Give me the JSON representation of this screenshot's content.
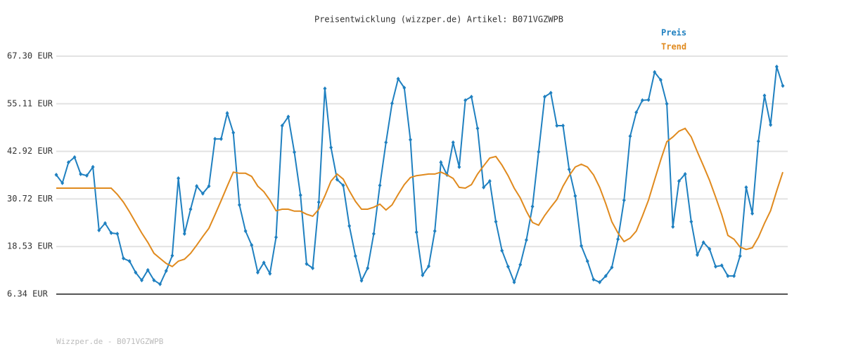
{
  "chart_data": {
    "type": "line",
    "title": "Preisentwicklung (wizzper.de) Artikel: B071VGZWPB",
    "footer": "Wizzper.de - B071VGZWPB",
    "ylim": [
      6.34,
      67.3
    ],
    "yticks": [
      {
        "value": 6.34,
        "label": "6.34 EUR"
      },
      {
        "value": 18.53,
        "label": "18.53 EUR"
      },
      {
        "value": 30.72,
        "label": "30.72 EUR"
      },
      {
        "value": 42.92,
        "label": "42.92 EUR"
      },
      {
        "value": 55.11,
        "label": "55.11 EUR"
      },
      {
        "value": 67.3,
        "label": "67.30 EUR"
      }
    ],
    "grid": true,
    "legend": "top-right",
    "series": [
      {
        "name": "Preis",
        "color": "#1f80c0",
        "markers": true,
        "values": [
          36.9,
          34.8,
          40.1,
          41.4,
          37.1,
          36.7,
          38.9,
          22.7,
          24.5,
          22.0,
          21.8,
          15.5,
          14.8,
          11.9,
          9.9,
          12.5,
          9.9,
          8.9,
          12.3,
          16.2,
          36.0,
          21.8,
          28.1,
          34.0,
          32.1,
          34.0,
          46.1,
          46.1,
          52.7,
          47.7,
          29.2,
          22.5,
          18.9,
          11.9,
          14.4,
          11.6,
          20.9,
          49.5,
          51.8,
          42.7,
          31.7,
          14.1,
          13.0,
          29.9,
          59.0,
          43.9,
          35.7,
          34.2,
          23.8,
          16.1,
          9.8,
          13.0,
          21.8,
          34.2,
          45.2,
          55.2,
          61.5,
          59.2,
          45.9,
          22.2,
          11.2,
          13.5,
          22.5,
          40.1,
          36.9,
          45.2,
          38.9,
          56.0,
          56.9,
          48.8,
          33.7,
          35.3,
          24.9,
          17.5,
          13.4,
          9.4,
          13.9,
          20.2,
          28.8,
          42.8,
          56.9,
          57.9,
          49.5,
          49.5,
          38.3,
          31.5,
          18.7,
          14.8,
          10.1,
          9.4,
          11.0,
          13.2,
          20.4,
          30.4,
          46.8,
          52.9,
          56.0,
          56.1,
          63.2,
          61.2,
          55.1,
          23.6,
          35.3,
          37.1,
          24.9,
          16.4,
          19.6,
          17.9,
          13.4,
          13.7,
          11.0,
          11.0,
          16.1,
          33.7,
          27.0,
          45.5,
          57.2,
          49.7,
          64.6,
          59.7
        ]
      },
      {
        "name": "Trend",
        "color": "#e08a1e",
        "markers": false,
        "values": [
          33.5,
          33.5,
          33.5,
          33.5,
          33.5,
          33.5,
          33.5,
          33.5,
          33.5,
          33.5,
          31.9,
          29.9,
          27.4,
          24.7,
          22.0,
          19.6,
          16.8,
          15.5,
          14.2,
          13.4,
          14.8,
          15.3,
          16.8,
          18.9,
          21.1,
          23.2,
          26.7,
          30.3,
          34.0,
          37.6,
          37.3,
          37.3,
          36.5,
          34.0,
          32.6,
          30.4,
          27.7,
          28.1,
          28.1,
          27.6,
          27.6,
          26.8,
          26.3,
          28.1,
          31.5,
          35.3,
          37.1,
          35.8,
          32.8,
          30.1,
          28.1,
          28.1,
          28.6,
          29.4,
          27.9,
          29.2,
          31.9,
          34.4,
          36.2,
          36.7,
          36.9,
          37.1,
          37.1,
          37.6,
          36.9,
          36.0,
          33.7,
          33.5,
          34.4,
          37.1,
          39.2,
          41.2,
          41.6,
          39.4,
          36.7,
          33.5,
          31.0,
          27.6,
          24.7,
          24.0,
          26.5,
          28.6,
          30.6,
          34.0,
          36.7,
          38.9,
          39.6,
          38.9,
          36.9,
          33.7,
          29.5,
          24.9,
          22.0,
          19.8,
          20.7,
          22.5,
          26.3,
          30.4,
          35.6,
          40.7,
          45.4,
          46.6,
          48.1,
          48.8,
          46.6,
          42.8,
          39.2,
          35.5,
          31.2,
          26.7,
          21.4,
          20.4,
          18.4,
          17.8,
          18.2,
          20.9,
          24.5,
          27.7,
          32.8,
          37.6
        ]
      }
    ]
  }
}
